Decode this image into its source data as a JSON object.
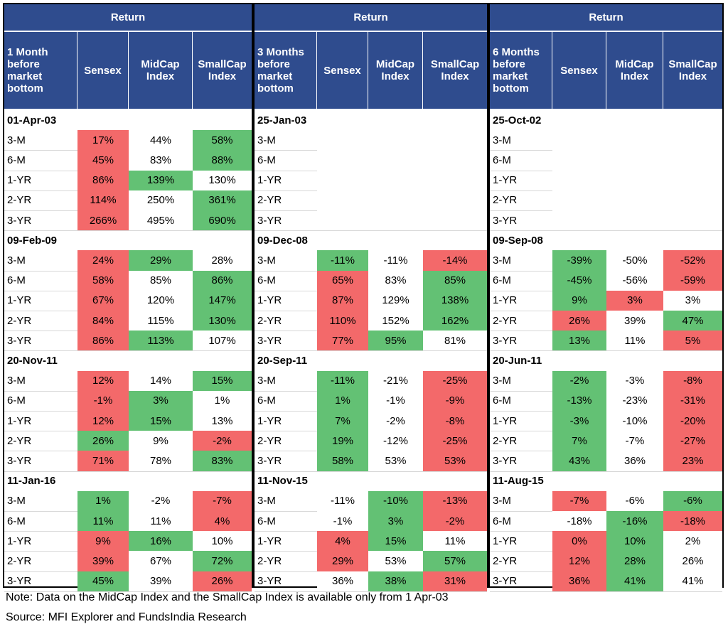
{
  "blocks": [
    {
      "return_label": "Return",
      "period_header": "1 Month before market bottom",
      "col_headers": [
        "Sensex",
        "MidCap Index",
        "SmallCap Index"
      ],
      "groups": [
        {
          "date": "01-Apr-03",
          "rows": [
            {
              "label": "3-M",
              "values": [
                "17%",
                "44%",
                "58%"
              ],
              "colors": [
                "r",
                "w",
                "g"
              ]
            },
            {
              "label": "6-M",
              "values": [
                "45%",
                "83%",
                "88%"
              ],
              "colors": [
                "r",
                "w",
                "g"
              ]
            },
            {
              "label": "1-YR",
              "values": [
                "86%",
                "139%",
                "130%"
              ],
              "colors": [
                "r",
                "g",
                "w"
              ]
            },
            {
              "label": "2-YR",
              "values": [
                "114%",
                "250%",
                "361%"
              ],
              "colors": [
                "r",
                "w",
                "g"
              ]
            },
            {
              "label": "3-YR",
              "values": [
                "266%",
                "495%",
                "690%"
              ],
              "colors": [
                "r",
                "w",
                "g"
              ]
            }
          ]
        },
        {
          "date": "09-Feb-09",
          "rows": [
            {
              "label": "3-M",
              "values": [
                "24%",
                "29%",
                "28%"
              ],
              "colors": [
                "r",
                "g",
                "w"
              ]
            },
            {
              "label": "6-M",
              "values": [
                "58%",
                "85%",
                "86%"
              ],
              "colors": [
                "r",
                "w",
                "g"
              ]
            },
            {
              "label": "1-YR",
              "values": [
                "67%",
                "120%",
                "147%"
              ],
              "colors": [
                "r",
                "w",
                "g"
              ]
            },
            {
              "label": "2-YR",
              "values": [
                "84%",
                "115%",
                "130%"
              ],
              "colors": [
                "r",
                "w",
                "g"
              ]
            },
            {
              "label": "3-YR",
              "values": [
                "86%",
                "113%",
                "107%"
              ],
              "colors": [
                "r",
                "g",
                "w"
              ]
            }
          ]
        },
        {
          "date": "20-Nov-11",
          "rows": [
            {
              "label": "3-M",
              "values": [
                "12%",
                "14%",
                "15%"
              ],
              "colors": [
                "r",
                "w",
                "g"
              ]
            },
            {
              "label": "6-M",
              "values": [
                "-1%",
                "3%",
                "1%"
              ],
              "colors": [
                "r",
                "g",
                "w"
              ]
            },
            {
              "label": "1-YR",
              "values": [
                "12%",
                "15%",
                "13%"
              ],
              "colors": [
                "r",
                "g",
                "w"
              ]
            },
            {
              "label": "2-YR",
              "values": [
                "26%",
                "9%",
                "-2%"
              ],
              "colors": [
                "g",
                "w",
                "r"
              ]
            },
            {
              "label": "3-YR",
              "values": [
                "71%",
                "78%",
                "83%"
              ],
              "colors": [
                "r",
                "w",
                "g"
              ]
            }
          ]
        },
        {
          "date": "11-Jan-16",
          "rows": [
            {
              "label": "3-M",
              "values": [
                "1%",
                "-2%",
                "-7%"
              ],
              "colors": [
                "g",
                "w",
                "r"
              ]
            },
            {
              "label": "6-M",
              "values": [
                "11%",
                "11%",
                "4%"
              ],
              "colors": [
                "g",
                "w",
                "r"
              ]
            },
            {
              "label": "1-YR",
              "values": [
                "9%",
                "16%",
                "10%"
              ],
              "colors": [
                "r",
                "g",
                "w"
              ]
            },
            {
              "label": "2-YR",
              "values": [
                "39%",
                "67%",
                "72%"
              ],
              "colors": [
                "r",
                "w",
                "g"
              ]
            },
            {
              "label": "3-YR",
              "values": [
                "45%",
                "39%",
                "26%"
              ],
              "colors": [
                "g",
                "w",
                "r"
              ]
            }
          ]
        }
      ]
    },
    {
      "return_label": "Return",
      "period_header": "3 Months before market bottom",
      "col_headers": [
        "Sensex",
        "MidCap Index",
        "SmallCap Index"
      ],
      "groups": [
        {
          "date": "25-Jan-03",
          "rows": [
            {
              "label": "3-M",
              "values": [
                "",
                "",
                ""
              ],
              "colors": [
                "w",
                "w",
                "w"
              ]
            },
            {
              "label": "6-M",
              "values": [
                "",
                "",
                ""
              ],
              "colors": [
                "w",
                "w",
                "w"
              ]
            },
            {
              "label": "1-YR",
              "values": [
                "",
                "",
                ""
              ],
              "colors": [
                "w",
                "w",
                "w"
              ]
            },
            {
              "label": "2-YR",
              "values": [
                "",
                "",
                ""
              ],
              "colors": [
                "w",
                "w",
                "w"
              ]
            },
            {
              "label": "3-YR",
              "values": [
                "",
                "",
                ""
              ],
              "colors": [
                "w",
                "w",
                "w"
              ]
            }
          ]
        },
        {
          "date": "09-Dec-08",
          "rows": [
            {
              "label": "3-M",
              "values": [
                "-11%",
                "-11%",
                "-14%"
              ],
              "colors": [
                "g",
                "w",
                "r"
              ]
            },
            {
              "label": "6-M",
              "values": [
                "65%",
                "83%",
                "85%"
              ],
              "colors": [
                "r",
                "w",
                "g"
              ]
            },
            {
              "label": "1-YR",
              "values": [
                "87%",
                "129%",
                "138%"
              ],
              "colors": [
                "r",
                "w",
                "g"
              ]
            },
            {
              "label": "2-YR",
              "values": [
                "110%",
                "152%",
                "162%"
              ],
              "colors": [
                "r",
                "w",
                "g"
              ]
            },
            {
              "label": "3-YR",
              "values": [
                "77%",
                "95%",
                "81%"
              ],
              "colors": [
                "r",
                "g",
                "w"
              ]
            }
          ]
        },
        {
          "date": "20-Sep-11",
          "rows": [
            {
              "label": "3-M",
              "values": [
                "-11%",
                "-21%",
                "-25%"
              ],
              "colors": [
                "g",
                "w",
                "r"
              ]
            },
            {
              "label": "6-M",
              "values": [
                "1%",
                "-1%",
                "-9%"
              ],
              "colors": [
                "g",
                "w",
                "r"
              ]
            },
            {
              "label": "1-YR",
              "values": [
                "7%",
                "-2%",
                "-8%"
              ],
              "colors": [
                "g",
                "w",
                "r"
              ]
            },
            {
              "label": "2-YR",
              "values": [
                "19%",
                "-12%",
                "-25%"
              ],
              "colors": [
                "g",
                "w",
                "r"
              ]
            },
            {
              "label": "3-YR",
              "values": [
                "58%",
                "53%",
                "53%"
              ],
              "colors": [
                "g",
                "w",
                "r"
              ]
            }
          ]
        },
        {
          "date": "11-Nov-15",
          "rows": [
            {
              "label": "3-M",
              "values": [
                "-11%",
                "-10%",
                "-13%"
              ],
              "colors": [
                "w",
                "g",
                "r"
              ]
            },
            {
              "label": "6-M",
              "values": [
                "-1%",
                "3%",
                "-2%"
              ],
              "colors": [
                "w",
                "g",
                "r"
              ]
            },
            {
              "label": "1-YR",
              "values": [
                "4%",
                "15%",
                "11%"
              ],
              "colors": [
                "r",
                "g",
                "w"
              ]
            },
            {
              "label": "2-YR",
              "values": [
                "29%",
                "53%",
                "57%"
              ],
              "colors": [
                "r",
                "w",
                "g"
              ]
            },
            {
              "label": "3-YR",
              "values": [
                "36%",
                "38%",
                "31%"
              ],
              "colors": [
                "w",
                "g",
                "r"
              ]
            }
          ]
        }
      ]
    },
    {
      "return_label": "Return",
      "period_header": "6 Months before market bottom",
      "col_headers": [
        "Sensex",
        "MidCap Index",
        "SmallCap Index"
      ],
      "groups": [
        {
          "date": "25-Oct-02",
          "rows": [
            {
              "label": "3-M",
              "values": [
                "",
                "",
                ""
              ],
              "colors": [
                "w",
                "w",
                "w"
              ]
            },
            {
              "label": "6-M",
              "values": [
                "",
                "",
                ""
              ],
              "colors": [
                "w",
                "w",
                "w"
              ]
            },
            {
              "label": "1-YR",
              "values": [
                "",
                "",
                ""
              ],
              "colors": [
                "w",
                "w",
                "w"
              ]
            },
            {
              "label": "2-YR",
              "values": [
                "",
                "",
                ""
              ],
              "colors": [
                "w",
                "w",
                "w"
              ]
            },
            {
              "label": "3-YR",
              "values": [
                "",
                "",
                ""
              ],
              "colors": [
                "w",
                "w",
                "w"
              ]
            }
          ]
        },
        {
          "date": "09-Sep-08",
          "rows": [
            {
              "label": "3-M",
              "values": [
                "-39%",
                "-50%",
                "-52%"
              ],
              "colors": [
                "g",
                "w",
                "r"
              ]
            },
            {
              "label": "6-M",
              "values": [
                "-45%",
                "-56%",
                "-59%"
              ],
              "colors": [
                "g",
                "w",
                "r"
              ]
            },
            {
              "label": "1-YR",
              "values": [
                "9%",
                "3%",
                "3%"
              ],
              "colors": [
                "g",
                "r",
                "w"
              ]
            },
            {
              "label": "2-YR",
              "values": [
                "26%",
                "39%",
                "47%"
              ],
              "colors": [
                "r",
                "w",
                "g"
              ]
            },
            {
              "label": "3-YR",
              "values": [
                "13%",
                "11%",
                "5%"
              ],
              "colors": [
                "g",
                "w",
                "r"
              ]
            }
          ]
        },
        {
          "date": "20-Jun-11",
          "rows": [
            {
              "label": "3-M",
              "values": [
                "-2%",
                "-3%",
                "-8%"
              ],
              "colors": [
                "g",
                "w",
                "r"
              ]
            },
            {
              "label": "6-M",
              "values": [
                "-13%",
                "-23%",
                "-31%"
              ],
              "colors": [
                "g",
                "w",
                "r"
              ]
            },
            {
              "label": "1-YR",
              "values": [
                "-3%",
                "-10%",
                "-20%"
              ],
              "colors": [
                "g",
                "w",
                "r"
              ]
            },
            {
              "label": "2-YR",
              "values": [
                "7%",
                "-7%",
                "-27%"
              ],
              "colors": [
                "g",
                "w",
                "r"
              ]
            },
            {
              "label": "3-YR",
              "values": [
                "43%",
                "36%",
                "23%"
              ],
              "colors": [
                "g",
                "w",
                "r"
              ]
            }
          ]
        },
        {
          "date": "11-Aug-15",
          "rows": [
            {
              "label": "3-M",
              "values": [
                "-7%",
                "-6%",
                "-6%"
              ],
              "colors": [
                "r",
                "w",
                "g"
              ]
            },
            {
              "label": "6-M",
              "values": [
                "-18%",
                "-16%",
                "-18%"
              ],
              "colors": [
                "w",
                "g",
                "r"
              ]
            },
            {
              "label": "1-YR",
              "values": [
                "0%",
                "10%",
                "2%"
              ],
              "colors": [
                "r",
                "g",
                "w"
              ]
            },
            {
              "label": "2-YR",
              "values": [
                "12%",
                "28%",
                "26%"
              ],
              "colors": [
                "r",
                "g",
                "w"
              ]
            },
            {
              "label": "3-YR",
              "values": [
                "36%",
                "41%",
                "41%"
              ],
              "colors": [
                "r",
                "g",
                "w"
              ]
            }
          ]
        }
      ]
    }
  ],
  "note": "Note: Data on the MidCap Index and the SmallCap Index is available only from 1 Apr-03",
  "source": "Source: MFI Explorer and FundsIndia Research",
  "colors": {
    "header_bg": "#2f4c8e",
    "red": "#f3696a",
    "green": "#63c174"
  }
}
